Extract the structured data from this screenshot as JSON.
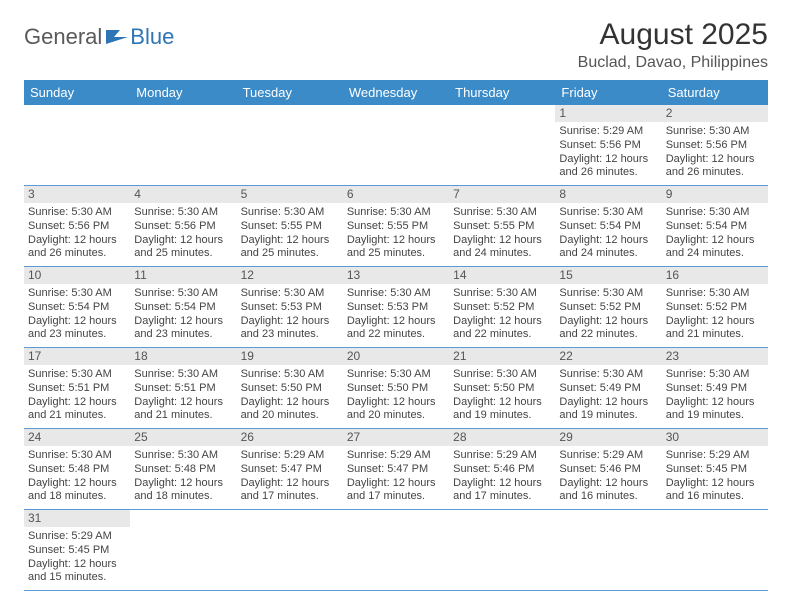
{
  "logo": {
    "part1": "General",
    "part2": "Blue"
  },
  "title": "August 2025",
  "location": "Buclad, Davao, Philippines",
  "colors": {
    "header_bg": "#3b8bc9",
    "header_text": "#ffffff",
    "cell_border": "#5b9bd5",
    "daynum_bg": "#e8e8e8",
    "text": "#444444",
    "logo_gray": "#5a5a5a",
    "logo_blue": "#2e75b6"
  },
  "day_headers": [
    "Sunday",
    "Monday",
    "Tuesday",
    "Wednesday",
    "Thursday",
    "Friday",
    "Saturday"
  ],
  "weeks": [
    [
      null,
      null,
      null,
      null,
      null,
      {
        "n": "1",
        "sr": "5:29 AM",
        "ss": "5:56 PM",
        "dl": "12 hours and 26 minutes."
      },
      {
        "n": "2",
        "sr": "5:30 AM",
        "ss": "5:56 PM",
        "dl": "12 hours and 26 minutes."
      }
    ],
    [
      {
        "n": "3",
        "sr": "5:30 AM",
        "ss": "5:56 PM",
        "dl": "12 hours and 26 minutes."
      },
      {
        "n": "4",
        "sr": "5:30 AM",
        "ss": "5:56 PM",
        "dl": "12 hours and 25 minutes."
      },
      {
        "n": "5",
        "sr": "5:30 AM",
        "ss": "5:55 PM",
        "dl": "12 hours and 25 minutes."
      },
      {
        "n": "6",
        "sr": "5:30 AM",
        "ss": "5:55 PM",
        "dl": "12 hours and 25 minutes."
      },
      {
        "n": "7",
        "sr": "5:30 AM",
        "ss": "5:55 PM",
        "dl": "12 hours and 24 minutes."
      },
      {
        "n": "8",
        "sr": "5:30 AM",
        "ss": "5:54 PM",
        "dl": "12 hours and 24 minutes."
      },
      {
        "n": "9",
        "sr": "5:30 AM",
        "ss": "5:54 PM",
        "dl": "12 hours and 24 minutes."
      }
    ],
    [
      {
        "n": "10",
        "sr": "5:30 AM",
        "ss": "5:54 PM",
        "dl": "12 hours and 23 minutes."
      },
      {
        "n": "11",
        "sr": "5:30 AM",
        "ss": "5:54 PM",
        "dl": "12 hours and 23 minutes."
      },
      {
        "n": "12",
        "sr": "5:30 AM",
        "ss": "5:53 PM",
        "dl": "12 hours and 23 minutes."
      },
      {
        "n": "13",
        "sr": "5:30 AM",
        "ss": "5:53 PM",
        "dl": "12 hours and 22 minutes."
      },
      {
        "n": "14",
        "sr": "5:30 AM",
        "ss": "5:52 PM",
        "dl": "12 hours and 22 minutes."
      },
      {
        "n": "15",
        "sr": "5:30 AM",
        "ss": "5:52 PM",
        "dl": "12 hours and 22 minutes."
      },
      {
        "n": "16",
        "sr": "5:30 AM",
        "ss": "5:52 PM",
        "dl": "12 hours and 21 minutes."
      }
    ],
    [
      {
        "n": "17",
        "sr": "5:30 AM",
        "ss": "5:51 PM",
        "dl": "12 hours and 21 minutes."
      },
      {
        "n": "18",
        "sr": "5:30 AM",
        "ss": "5:51 PM",
        "dl": "12 hours and 21 minutes."
      },
      {
        "n": "19",
        "sr": "5:30 AM",
        "ss": "5:50 PM",
        "dl": "12 hours and 20 minutes."
      },
      {
        "n": "20",
        "sr": "5:30 AM",
        "ss": "5:50 PM",
        "dl": "12 hours and 20 minutes."
      },
      {
        "n": "21",
        "sr": "5:30 AM",
        "ss": "5:50 PM",
        "dl": "12 hours and 19 minutes."
      },
      {
        "n": "22",
        "sr": "5:30 AM",
        "ss": "5:49 PM",
        "dl": "12 hours and 19 minutes."
      },
      {
        "n": "23",
        "sr": "5:30 AM",
        "ss": "5:49 PM",
        "dl": "12 hours and 19 minutes."
      }
    ],
    [
      {
        "n": "24",
        "sr": "5:30 AM",
        "ss": "5:48 PM",
        "dl": "12 hours and 18 minutes."
      },
      {
        "n": "25",
        "sr": "5:30 AM",
        "ss": "5:48 PM",
        "dl": "12 hours and 18 minutes."
      },
      {
        "n": "26",
        "sr": "5:29 AM",
        "ss": "5:47 PM",
        "dl": "12 hours and 17 minutes."
      },
      {
        "n": "27",
        "sr": "5:29 AM",
        "ss": "5:47 PM",
        "dl": "12 hours and 17 minutes."
      },
      {
        "n": "28",
        "sr": "5:29 AM",
        "ss": "5:46 PM",
        "dl": "12 hours and 17 minutes."
      },
      {
        "n": "29",
        "sr": "5:29 AM",
        "ss": "5:46 PM",
        "dl": "12 hours and 16 minutes."
      },
      {
        "n": "30",
        "sr": "5:29 AM",
        "ss": "5:45 PM",
        "dl": "12 hours and 16 minutes."
      }
    ],
    [
      {
        "n": "31",
        "sr": "5:29 AM",
        "ss": "5:45 PM",
        "dl": "12 hours and 15 minutes."
      },
      null,
      null,
      null,
      null,
      null,
      null
    ]
  ],
  "labels": {
    "sunrise": "Sunrise:",
    "sunset": "Sunset:",
    "daylight": "Daylight:"
  }
}
